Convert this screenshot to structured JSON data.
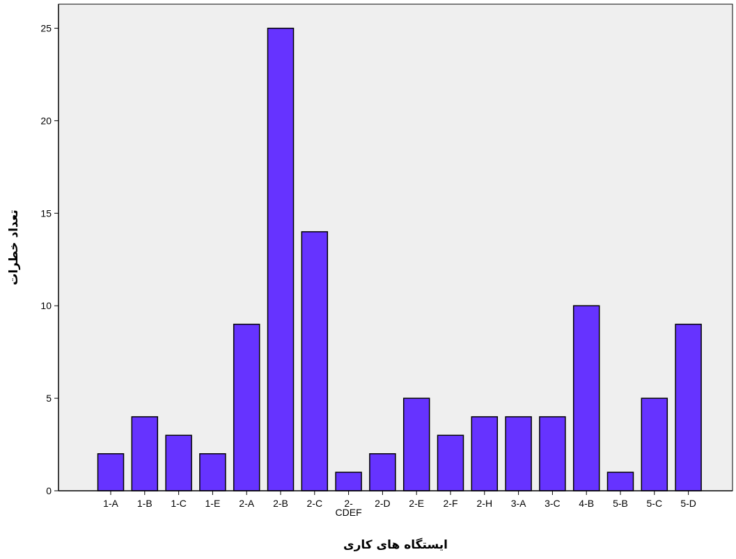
{
  "colors": {
    "plot_background": "#efefef",
    "bar_fill": "#6633ff",
    "bar_stroke": "#000000",
    "axis": "#000000"
  },
  "chart_data": {
    "type": "bar",
    "title": "",
    "xlabel": "ایستگاه های کاری",
    "ylabel": "تعداد خطرات",
    "categories": [
      "1-A",
      "1-B",
      "1-C",
      "1-E",
      "2-A",
      "2-B",
      "2-C",
      "2-CDEF",
      "2-D",
      "2-E",
      "2-F",
      "2-H",
      "3-A",
      "3-C",
      "4-B",
      "5-B",
      "5-C",
      "5-D"
    ],
    "category_labels": [
      [
        "1-A"
      ],
      [
        "1-B"
      ],
      [
        "1-C"
      ],
      [
        "1-E"
      ],
      [
        "2-A"
      ],
      [
        "2-B"
      ],
      [
        "2-C"
      ],
      [
        "2-",
        "CDEF"
      ],
      [
        "2-D"
      ],
      [
        "2-E"
      ],
      [
        "2-F"
      ],
      [
        "2-H"
      ],
      [
        "3-A"
      ],
      [
        "3-C"
      ],
      [
        "4-B"
      ],
      [
        "5-B"
      ],
      [
        "5-C"
      ],
      [
        "5-D"
      ]
    ],
    "values": [
      2,
      4,
      3,
      2,
      9,
      25,
      14,
      1,
      2,
      5,
      3,
      4,
      4,
      4,
      10,
      1,
      5,
      9
    ],
    "ylim": [
      0,
      26.3
    ],
    "yticks": [
      0,
      5,
      10,
      15,
      20,
      25
    ],
    "grid": false,
    "legend": "none"
  }
}
